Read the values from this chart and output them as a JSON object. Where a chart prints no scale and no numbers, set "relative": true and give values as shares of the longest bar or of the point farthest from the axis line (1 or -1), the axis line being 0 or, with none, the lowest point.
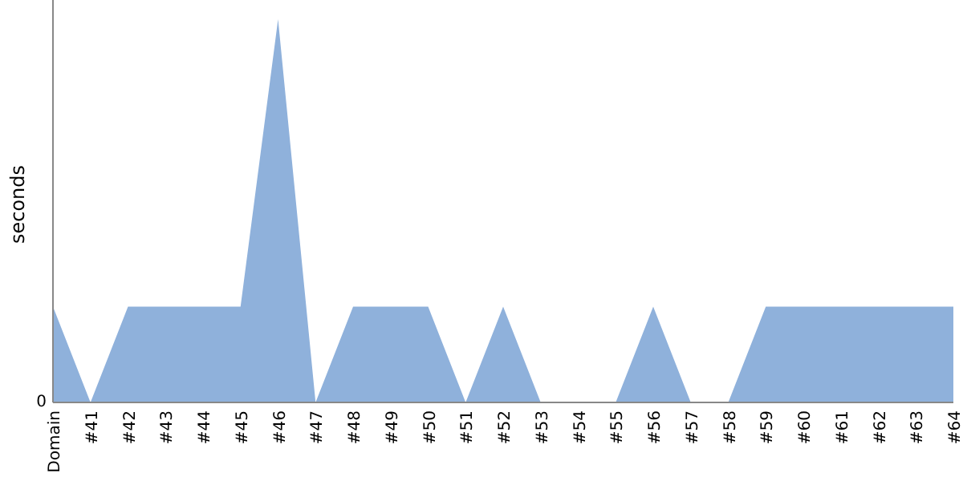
{
  "chart_data": {
    "type": "area",
    "ylabel": "seconds",
    "relative": true,
    "color": "#8fb1db",
    "categories": [
      "Domain",
      "#41",
      "#42",
      "#43",
      "#44",
      "#45",
      "#46",
      "#47",
      "#48",
      "#49",
      "#50",
      "#51",
      "#52",
      "#53",
      "#54",
      "#55",
      "#56",
      "#57",
      "#58",
      "#59",
      "#60",
      "#61",
      "#62",
      "#63",
      "#64"
    ],
    "values": [
      0.25,
      0,
      0.25,
      0.25,
      0.25,
      0.25,
      1,
      0,
      0.25,
      0.25,
      0.25,
      0,
      0.25,
      0,
      0,
      0,
      0.25,
      0,
      0,
      0.25,
      0.25,
      0.25,
      0.25,
      0.25,
      0.25
    ],
    "annotations": [
      "0"
    ]
  }
}
